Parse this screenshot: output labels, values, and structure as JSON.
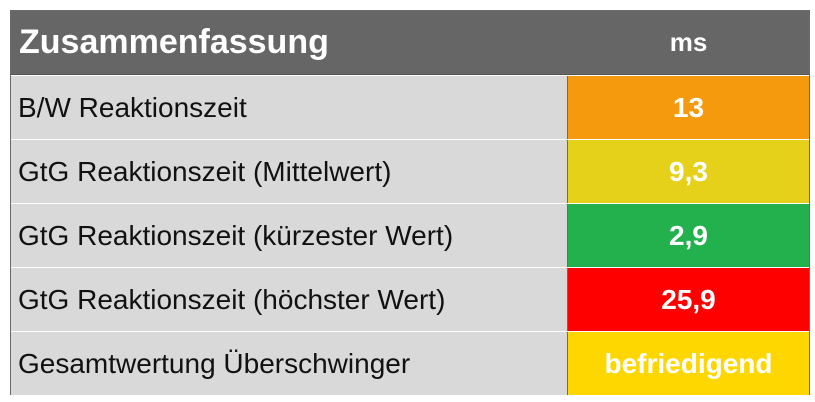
{
  "header": {
    "title": "Zusammenfassung",
    "unit": "ms"
  },
  "rows": [
    {
      "label": "B/W Reaktionszeit",
      "value": "13",
      "color": "#f59a0c"
    },
    {
      "label": "GtG Reaktionszeit (Mittelwert)",
      "value": "9,3",
      "color": "#e6d11a"
    },
    {
      "label": "GtG Reaktionszeit (kürzester Wert)",
      "value": "2,9",
      "color": "#22b14c"
    },
    {
      "label": "GtG Reaktionszeit (höchster Wert)",
      "value": "25,9",
      "color": "#ff0000"
    },
    {
      "label": "Gesamtwertung Überschwinger",
      "value": "befriedigend",
      "color": "#ffd700"
    }
  ]
}
